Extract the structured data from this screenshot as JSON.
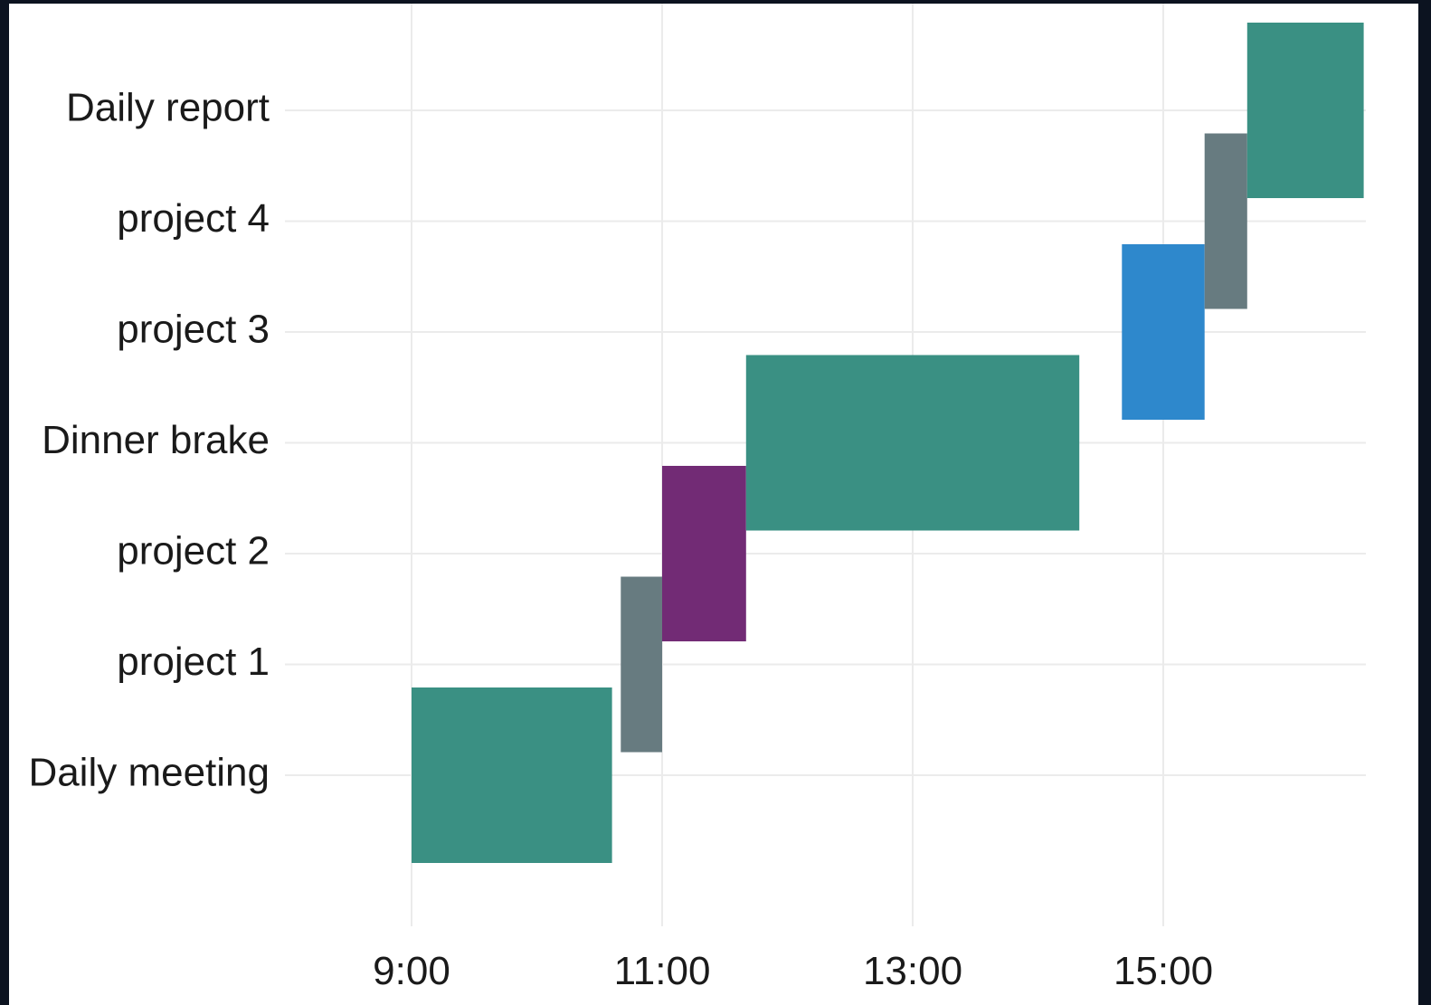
{
  "chart_data": {
    "type": "bar",
    "subtype": "gantt",
    "title": "",
    "xlabel": "",
    "ylabel": "",
    "x_unit": "hour of day",
    "xlim": [
      8.0,
      16.8
    ],
    "x_ticks": [
      {
        "value": 9,
        "label": "9:00"
      },
      {
        "value": 11,
        "label": "11:00"
      },
      {
        "value": 13,
        "label": "13:00"
      },
      {
        "value": 15,
        "label": "15:00"
      }
    ],
    "categories": [
      "Daily meeting",
      "project 1",
      "project 2",
      "Dinner brake",
      "project 3",
      "project 4",
      "Daily report"
    ],
    "tasks": [
      {
        "category": "Daily meeting",
        "start": 9.0,
        "end": 10.6,
        "color": "#3a9083"
      },
      {
        "category": "project 1",
        "start": 10.67,
        "end": 11.0,
        "color": "#677b80"
      },
      {
        "category": "project 2",
        "start": 11.0,
        "end": 11.67,
        "color": "#722b75"
      },
      {
        "category": "Dinner brake",
        "start": 11.67,
        "end": 14.33,
        "color": "#3a9083"
      },
      {
        "category": "project 3",
        "start": 14.67,
        "end": 15.33,
        "color": "#2e88cc"
      },
      {
        "category": "project 4",
        "start": 15.33,
        "end": 15.67,
        "color": "#677b80"
      },
      {
        "category": "Daily report",
        "start": 15.67,
        "end": 16.6,
        "color": "#3a9083"
      }
    ],
    "grid": true,
    "legend": "none"
  }
}
